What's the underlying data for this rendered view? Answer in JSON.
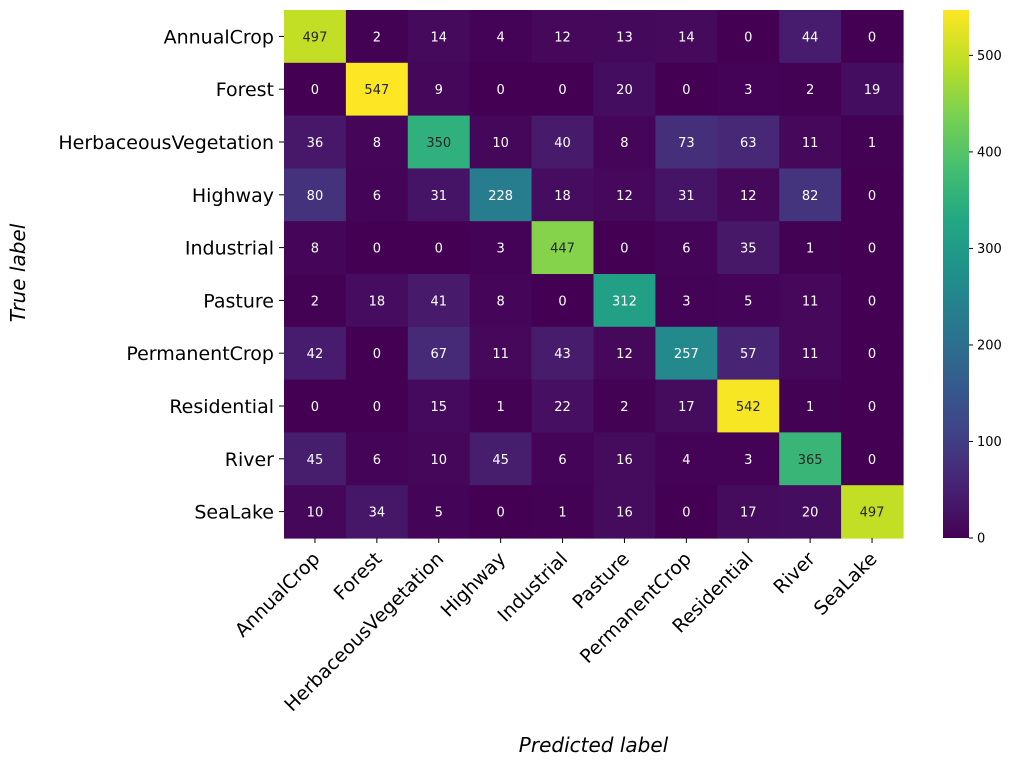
{
  "chart_data": {
    "type": "heatmap",
    "title": "",
    "xlabel": "Predicted label",
    "ylabel": "True label",
    "x_categories": [
      "AnnualCrop",
      "Forest",
      "HerbaceousVegetation",
      "Highway",
      "Industrial",
      "Pasture",
      "PermanentCrop",
      "Residential",
      "River",
      "SeaLake"
    ],
    "y_categories": [
      "AnnualCrop",
      "Forest",
      "HerbaceousVegetation",
      "Highway",
      "Industrial",
      "Pasture",
      "PermanentCrop",
      "Residential",
      "River",
      "SeaLake"
    ],
    "values": [
      [
        497,
        2,
        14,
        4,
        12,
        13,
        14,
        0,
        44,
        0
      ],
      [
        0,
        547,
        9,
        0,
        0,
        20,
        0,
        3,
        2,
        19
      ],
      [
        36,
        8,
        350,
        10,
        40,
        8,
        73,
        63,
        11,
        1
      ],
      [
        80,
        6,
        31,
        228,
        18,
        12,
        31,
        12,
        82,
        0
      ],
      [
        8,
        0,
        0,
        3,
        447,
        0,
        6,
        35,
        1,
        0
      ],
      [
        2,
        18,
        41,
        8,
        0,
        312,
        3,
        5,
        11,
        0
      ],
      [
        42,
        0,
        67,
        11,
        43,
        12,
        257,
        57,
        11,
        0
      ],
      [
        0,
        0,
        15,
        1,
        22,
        2,
        17,
        542,
        1,
        0
      ],
      [
        45,
        6,
        10,
        45,
        6,
        16,
        4,
        3,
        365,
        0
      ],
      [
        10,
        34,
        5,
        0,
        1,
        16,
        0,
        17,
        20,
        497
      ]
    ],
    "colormap": "viridis",
    "vmin": 0,
    "vmax": 547,
    "colorbar_ticks": [
      0,
      100,
      200,
      300,
      400,
      500
    ]
  }
}
